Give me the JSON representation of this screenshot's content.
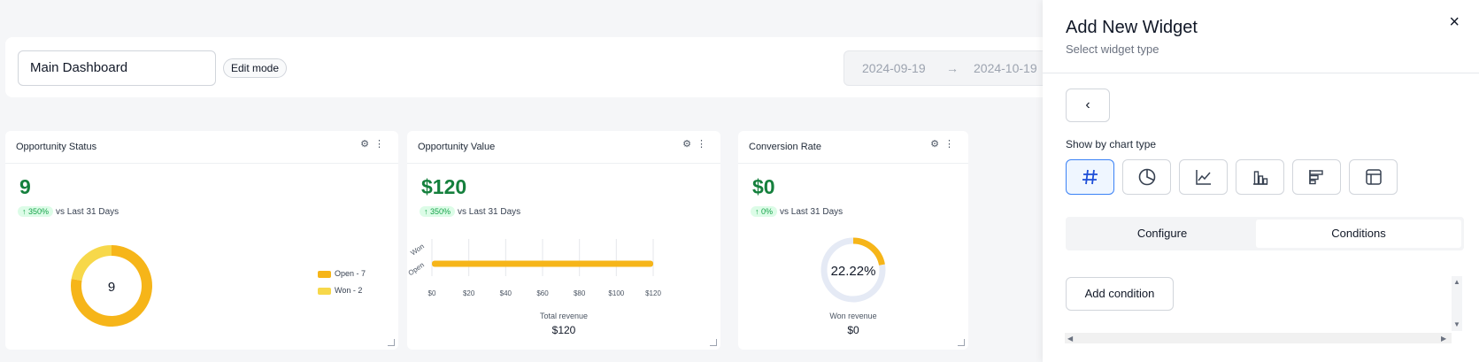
{
  "header": {
    "dashboard_name": "Main Dashboard",
    "edit_mode_label": "Edit mode",
    "date_start": "2024-09-19",
    "date_arrow": "→",
    "date_end": "2024-10-19"
  },
  "widgets": [
    {
      "title": "Opportunity Status",
      "value": "9",
      "delta": "↑ 350%",
      "delta_label": "vs Last 31 Days",
      "center_label": "9",
      "legend": [
        "Open - 7",
        "Won - 2"
      ]
    },
    {
      "title": "Opportunity Value",
      "value": "$120",
      "delta": "↑ 350%",
      "delta_label": "vs Last 31 Days",
      "caption": "Total revenue",
      "caption_value": "$120"
    },
    {
      "title": "Conversion Rate",
      "value": "$0",
      "delta": "↑ 0%",
      "delta_label": "vs Last 31 Days",
      "center_label": "22.22%",
      "caption": "Won revenue",
      "caption_value": "$0"
    }
  ],
  "chart_data": [
    {
      "type": "pie",
      "categories": [
        "Open",
        "Won"
      ],
      "values": [
        7,
        2
      ],
      "colors": [
        "#f6b519",
        "#f7d84a"
      ]
    },
    {
      "type": "bar",
      "orientation": "horizontal",
      "categories": [
        "Won",
        "Open"
      ],
      "values": [
        0,
        120
      ],
      "xlim": [
        0,
        120
      ],
      "x_ticks": [
        "$0",
        "$20",
        "$40",
        "$60",
        "$80",
        "$100",
        "$120"
      ],
      "grid": true,
      "color": "#f6b519"
    },
    {
      "type": "pie",
      "values": [
        22.22,
        77.78
      ],
      "colors": [
        "#f6b519",
        "#e5eaf5"
      ]
    }
  ],
  "panel": {
    "title": "Add New Widget",
    "subtitle": "Select widget type",
    "close_icon": "×",
    "back_icon": "‹",
    "section_label": "Show by chart type",
    "chart_types": [
      {
        "icon": "number-icon",
        "active": true
      },
      {
        "icon": "pie-chart-icon",
        "active": false
      },
      {
        "icon": "line-chart-icon",
        "active": false
      },
      {
        "icon": "column-chart-icon",
        "active": false
      },
      {
        "icon": "bar-chart-icon",
        "active": false
      },
      {
        "icon": "table-icon",
        "active": false
      }
    ],
    "tabs": [
      "Configure",
      "Conditions"
    ],
    "active_tab": "Conditions",
    "add_condition_label": "Add condition"
  }
}
